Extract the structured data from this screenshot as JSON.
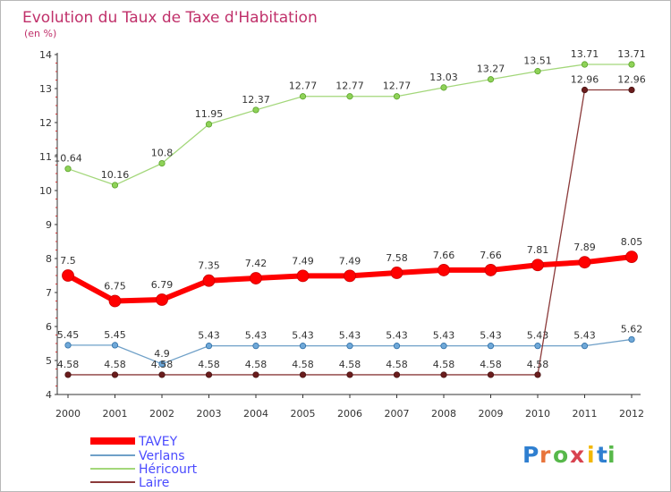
{
  "chart_data": {
    "type": "line",
    "title": "Evolution du Taux de Taxe d'Habitation",
    "subtitle": "(en %)",
    "x": [
      "2000",
      "2001",
      "2002",
      "2003",
      "2004",
      "2005",
      "2006",
      "2007",
      "2008",
      "2009",
      "2010",
      "2011",
      "2012"
    ],
    "ylim": [
      4,
      14
    ],
    "yticks": [
      "4",
      "5",
      "6",
      "7",
      "8",
      "9",
      "10",
      "11",
      "12",
      "13",
      "14"
    ],
    "grid": false,
    "legend_position": "bottom-left",
    "series": [
      {
        "name": "TAVEY",
        "color": "#ff0000",
        "values": [
          7.5,
          6.75,
          6.79,
          7.35,
          7.42,
          7.49,
          7.49,
          7.58,
          7.66,
          7.66,
          7.81,
          7.89,
          8.05
        ],
        "labels": [
          "7.5",
          "6.75",
          "6.79",
          "7.35",
          "7.42",
          "7.49",
          "7.49",
          "7.58",
          "7.66",
          "7.66",
          "7.81",
          "7.89",
          "8.05"
        ]
      },
      {
        "name": "Verlans",
        "color": "#6fa0c8",
        "values": [
          5.45,
          5.45,
          4.9,
          5.43,
          5.43,
          5.43,
          5.43,
          5.43,
          5.43,
          5.43,
          5.43,
          5.43,
          5.62
        ],
        "labels": [
          "5.45",
          "5.45",
          "4.9",
          "5.43",
          "5.43",
          "5.43",
          "5.43",
          "5.43",
          "5.43",
          "5.43",
          "5.43",
          "5.43",
          "5.62"
        ]
      },
      {
        "name": "Héricourt",
        "color": "#a3d77a",
        "values": [
          10.64,
          10.16,
          10.8,
          11.95,
          12.37,
          12.77,
          12.77,
          12.77,
          13.03,
          13.27,
          13.51,
          13.71,
          13.71
        ],
        "labels": [
          "10.64",
          "10.16",
          "10.8",
          "11.95",
          "12.37",
          "12.77",
          "12.77",
          "12.77",
          "13.03",
          "13.27",
          "13.51",
          "13.71",
          "13.71"
        ]
      },
      {
        "name": "Laire",
        "color": "#8b3a3a",
        "values": [
          4.58,
          4.58,
          4.58,
          4.58,
          4.58,
          4.58,
          4.58,
          4.58,
          4.58,
          4.58,
          4.58,
          12.96,
          12.96
        ],
        "labels": [
          "4.58",
          "4.58",
          "4.58",
          "4.58",
          "4.58",
          "4.58",
          "4.58",
          "4.58",
          "4.58",
          "4.58",
          "4.58",
          "12.96",
          "12.96"
        ]
      }
    ]
  },
  "watermark": "Proxiti"
}
